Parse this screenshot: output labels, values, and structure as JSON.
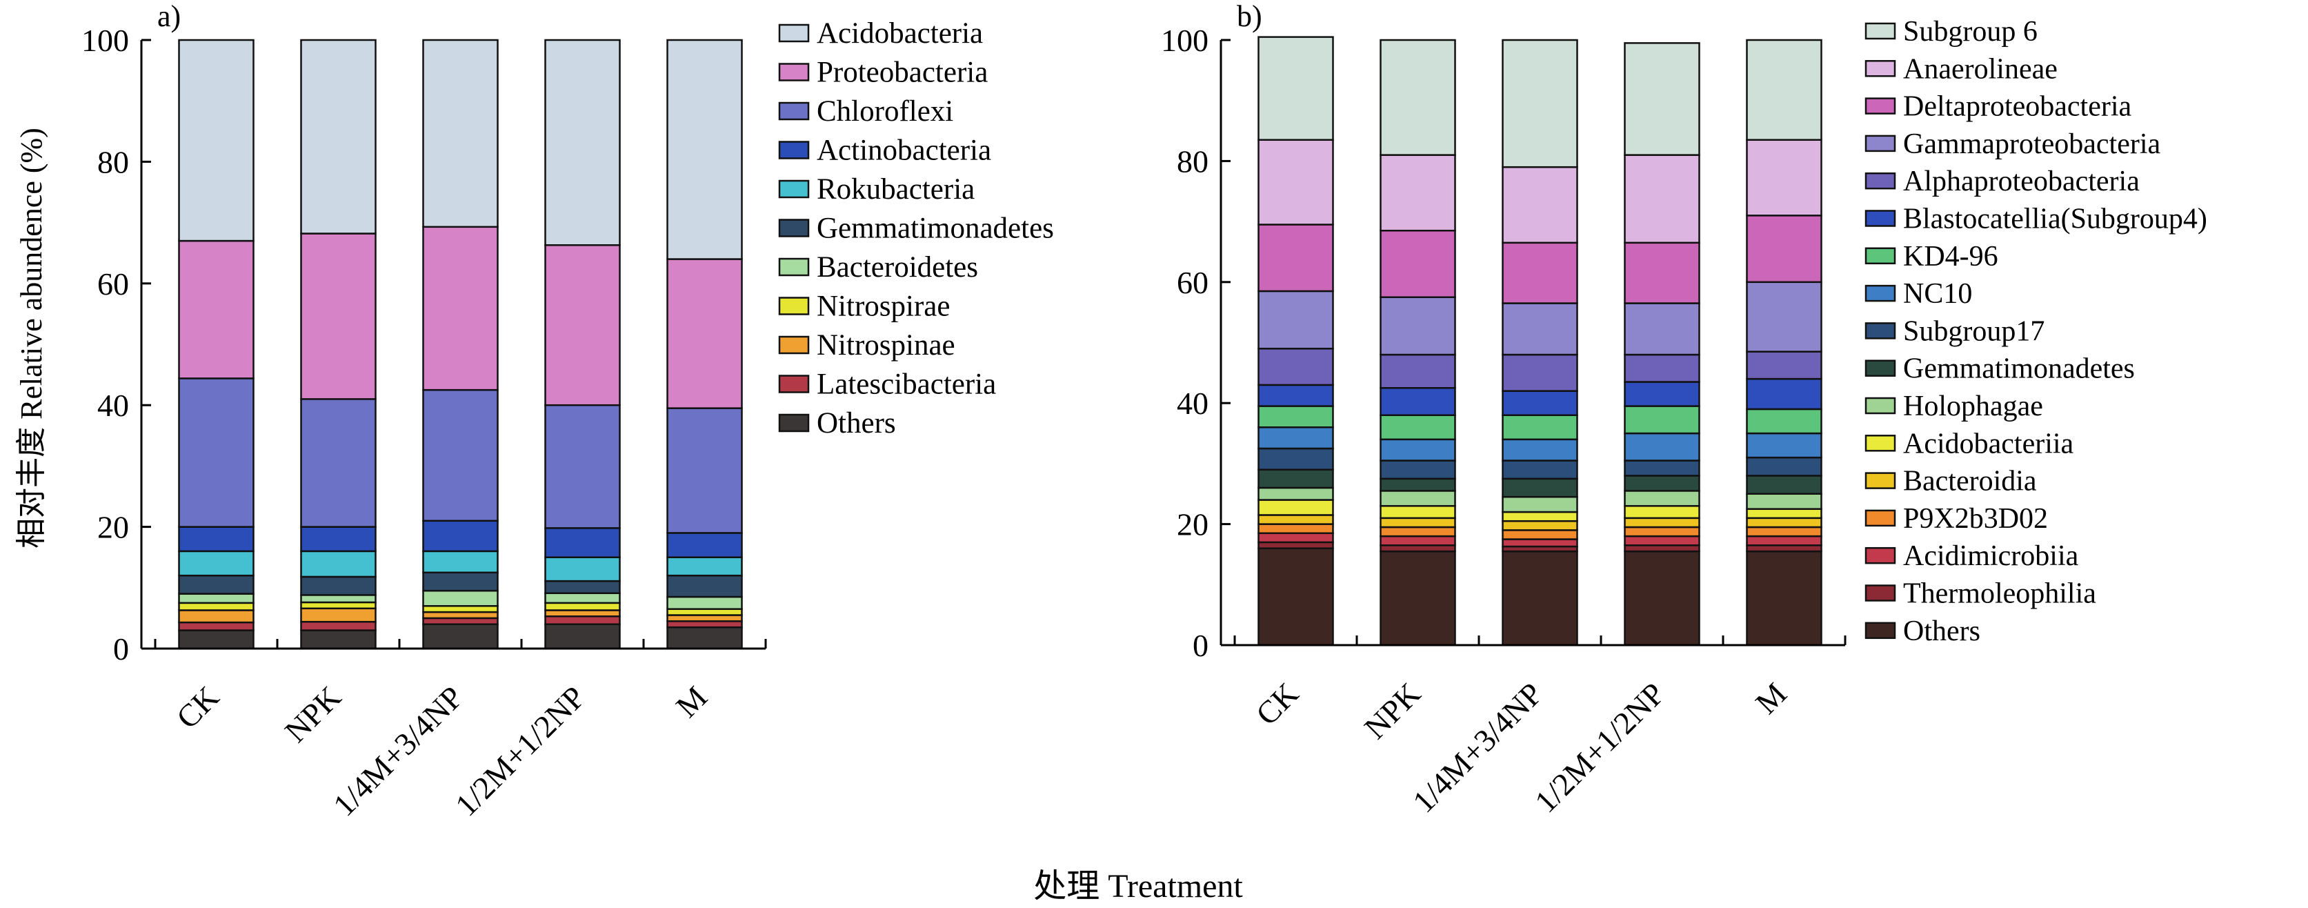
{
  "figure": {
    "ylabel": "相对丰度 Relative abundence (%)",
    "xlabel": "处理 Treatment"
  },
  "chart_data": [
    {
      "type": "bar",
      "stacked": true,
      "panel_label": "a)",
      "categories": [
        "CK",
        "NPK",
        "1/4M+3/4NP",
        "1/2M+1/2NP",
        "M"
      ],
      "ylim": [
        0,
        100
      ],
      "yticks": [
        0,
        20,
        40,
        60,
        80,
        100
      ],
      "legend_position": "right",
      "series": [
        {
          "name": "Others",
          "color": "#3b3636",
          "values": [
            3.0,
            3.0,
            4.0,
            4.0,
            3.5
          ]
        },
        {
          "name": "Latescibacteria",
          "color": "#b23a48",
          "values": [
            1.3,
            1.4,
            1.0,
            1.3,
            1.0
          ]
        },
        {
          "name": "Nitrospinae",
          "color": "#f0a030",
          "values": [
            2.0,
            2.2,
            1.0,
            1.0,
            1.0
          ]
        },
        {
          "name": "Nitrospirae",
          "color": "#e6e632",
          "values": [
            1.2,
            1.0,
            1.0,
            1.2,
            1.0
          ]
        },
        {
          "name": "Bacteroidetes",
          "color": "#a6dca0",
          "values": [
            1.5,
            1.2,
            2.5,
            1.6,
            2.0
          ]
        },
        {
          "name": "Gemmatimonadetes",
          "color": "#2e4a66",
          "values": [
            3.0,
            3.0,
            3.0,
            2.0,
            3.5
          ]
        },
        {
          "name": "Rokubacteria",
          "color": "#45c0d0",
          "values": [
            4.0,
            4.2,
            3.5,
            3.9,
            3.0
          ]
        },
        {
          "name": "Actinobacteria",
          "color": "#2a4db8",
          "values": [
            4.0,
            4.0,
            5.0,
            4.8,
            4.0
          ]
        },
        {
          "name": "Chloroflexi",
          "color": "#6c73c6",
          "values": [
            24.4,
            21.0,
            21.5,
            20.2,
            20.5
          ]
        },
        {
          "name": "Proteobacteria",
          "color": "#d683c8",
          "values": [
            22.6,
            27.2,
            26.8,
            26.3,
            24.5
          ]
        },
        {
          "name": "Acidobacteria",
          "color": "#ccd8e4",
          "values": [
            33.0,
            31.8,
            30.7,
            33.7,
            36.0
          ]
        }
      ]
    },
    {
      "type": "bar",
      "stacked": true,
      "panel_label": "b)",
      "categories": [
        "CK",
        "NPK",
        "1/4M+3/4NP",
        "1/2M+1/2NP",
        "M"
      ],
      "ylim": [
        0,
        100
      ],
      "yticks": [
        0,
        20,
        40,
        60,
        80,
        100
      ],
      "legend_position": "right",
      "series": [
        {
          "name": "Others",
          "color": "#3e2723",
          "values": [
            16.0,
            15.5,
            15.5,
            15.5,
            15.5
          ]
        },
        {
          "name": "Thermoleophilia",
          "color": "#8b2a35",
          "values": [
            1.0,
            1.0,
            0.8,
            1.0,
            1.0
          ]
        },
        {
          "name": "Acidimicrobiia",
          "color": "#c33a4c",
          "values": [
            1.5,
            1.5,
            1.2,
            1.5,
            1.5
          ]
        },
        {
          "name": "P9X2b3D02",
          "color": "#f08a2a",
          "values": [
            1.5,
            1.5,
            1.5,
            1.5,
            1.5
          ]
        },
        {
          "name": "Bacteroidia",
          "color": "#eec420",
          "values": [
            1.5,
            1.5,
            1.5,
            1.5,
            1.5
          ]
        },
        {
          "name": "Acidobacteriia",
          "color": "#eaea3a",
          "values": [
            2.5,
            2.0,
            1.5,
            2.0,
            1.5
          ]
        },
        {
          "name": "Holophagae",
          "color": "#9fd394",
          "values": [
            2.0,
            2.5,
            2.5,
            2.5,
            2.5
          ]
        },
        {
          "name": "Gemmatimonadetes",
          "color": "#2a4a40",
          "values": [
            3.0,
            2.0,
            3.0,
            2.5,
            3.0
          ]
        },
        {
          "name": "Subgroup17",
          "color": "#2b4f7a",
          "values": [
            3.5,
            3.0,
            3.0,
            2.5,
            3.0
          ]
        },
        {
          "name": "NC10",
          "color": "#3d7ec4",
          "values": [
            3.5,
            3.5,
            3.5,
            4.5,
            4.0
          ]
        },
        {
          "name": "KD4-96",
          "color": "#5dc47c",
          "values": [
            3.5,
            4.0,
            4.0,
            4.5,
            4.0
          ]
        },
        {
          "name": "Blastocatellia(Subgroup4)",
          "color": "#2d4ebc",
          "values": [
            3.5,
            4.5,
            4.0,
            4.0,
            5.0
          ]
        },
        {
          "name": "Alphaproteobacteria",
          "color": "#6e62b8",
          "values": [
            6.0,
            5.5,
            6.0,
            4.5,
            4.5
          ]
        },
        {
          "name": "Gammaproteobacteria",
          "color": "#8e86cc",
          "values": [
            9.5,
            9.5,
            8.5,
            8.5,
            11.5
          ]
        },
        {
          "name": "Deltaproteobacteria",
          "color": "#cc66b8",
          "values": [
            11.0,
            11.0,
            10.0,
            10.0,
            11.0
          ]
        },
        {
          "name": "Anaerolineae",
          "color": "#dcb6e0",
          "values": [
            14.0,
            12.5,
            12.5,
            14.5,
            12.5
          ]
        },
        {
          "name": "Subgroup 6",
          "color": "#cfe0d8",
          "values": [
            17.0,
            19.0,
            21.0,
            18.5,
            16.5
          ]
        }
      ]
    }
  ]
}
